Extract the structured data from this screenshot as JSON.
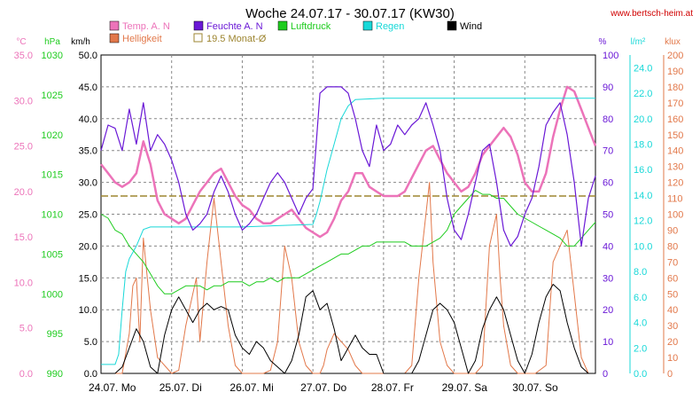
{
  "title": "Woche 24.07.17 - 30.07.17 (KW30)",
  "site": "www.bertsch-heim.at",
  "colors": {
    "temp": "#ec73b9",
    "hell": "#e2784a",
    "feuchte": "#6a18d6",
    "luftdruck": "#1fcc1f",
    "regen": "#18d8d8",
    "wind": "#000000",
    "monat": "#9d8530",
    "site": "#d00000",
    "grid": "#888888"
  },
  "legend": [
    {
      "key": "temp",
      "label": "Temp. A. N",
      "style": "fill"
    },
    {
      "key": "feuchte",
      "label": "Feuchte A. N",
      "style": "fill"
    },
    {
      "key": "luftdruck",
      "label": "Luftdruck",
      "style": "fill"
    },
    {
      "key": "regen",
      "label": "Regen",
      "style": "fill"
    },
    {
      "key": "wind",
      "label": "Wind",
      "style": "fill"
    },
    {
      "key": "hell",
      "label": "Helligkeit",
      "style": "fill"
    },
    {
      "key": "monat",
      "label": "19.5 Monat-Ø",
      "style": "box"
    }
  ],
  "axis_units": {
    "temp": "°C",
    "hpa": "hPa",
    "kmh": "km/h",
    "percent": "%",
    "regen": "l/m²",
    "klux": "klux"
  },
  "chart_data": {
    "type": "line",
    "xlim": [
      0,
      7
    ],
    "x_ticks": [
      "24.07. Mo",
      "25.07. Di",
      "26.07. Mi",
      "27.07. Do",
      "28.07. Fr",
      "29.07. Sa",
      "30.07. So"
    ],
    "axes": {
      "temp": {
        "range": [
          0,
          35
        ],
        "ticks": [
          "0.0",
          "5.0",
          "10.0",
          "15.0",
          "20.0",
          "25.0",
          "30.0",
          "35.0"
        ]
      },
      "hpa": {
        "range": [
          990,
          1030
        ],
        "ticks": [
          "990",
          "995",
          "1000",
          "1005",
          "1010",
          "1015",
          "1020",
          "1025",
          "1030"
        ]
      },
      "kmh": {
        "range": [
          0,
          50
        ],
        "ticks": [
          "0.0",
          "5.0",
          "10.0",
          "15.0",
          "20.0",
          "25.0",
          "30.0",
          "35.0",
          "40.0",
          "45.0",
          "50.0"
        ]
      },
      "percent": {
        "range": [
          0,
          100
        ],
        "ticks": [
          "0",
          "10",
          "20",
          "30",
          "40",
          "50",
          "60",
          "70",
          "80",
          "90",
          "100"
        ]
      },
      "regen": {
        "range": [
          0,
          25
        ],
        "ticks": [
          "0.0",
          "2.0",
          "4.0",
          "6.0",
          "8.0",
          "10.0",
          "12.0",
          "14.0",
          "16.0",
          "18.0",
          "20.0",
          "22.0",
          "24.0"
        ]
      },
      "klux": {
        "range": [
          0,
          200
        ],
        "ticks": [
          "0",
          "10",
          "20",
          "30",
          "40",
          "50",
          "60",
          "70",
          "80",
          "90",
          "100",
          "110",
          "120",
          "130",
          "140",
          "150",
          "160",
          "170",
          "180",
          "190",
          "200"
        ]
      }
    },
    "monat_avg": 19.5,
    "series": [
      {
        "key": "hell",
        "axis": "klux",
        "x": [
          0,
          0.15,
          0.3,
          0.4,
          0.45,
          0.5,
          0.55,
          0.6,
          0.7,
          0.8,
          1.0,
          1.1,
          1.2,
          1.3,
          1.35,
          1.4,
          1.5,
          1.6,
          1.7,
          1.8,
          1.9,
          2.0,
          2.15,
          2.3,
          2.4,
          2.5,
          2.6,
          2.7,
          2.8,
          2.9,
          3.0,
          3.1,
          3.15,
          3.2,
          3.3,
          3.4,
          3.5,
          3.6,
          3.7,
          3.8,
          3.9,
          4.0,
          4.15,
          4.3,
          4.4,
          4.5,
          4.6,
          4.65,
          4.7,
          4.8,
          4.9,
          5.0,
          5.15,
          5.3,
          5.4,
          5.5,
          5.6,
          5.65,
          5.7,
          5.8,
          5.9,
          6.0,
          6.15,
          6.3,
          6.4,
          6.5,
          6.6,
          6.7,
          6.8,
          6.9,
          7.0
        ],
        "y": [
          0,
          0,
          0,
          25,
          55,
          60,
          20,
          85,
          40,
          10,
          0,
          2,
          30,
          50,
          60,
          20,
          70,
          110,
          70,
          30,
          5,
          0,
          0,
          0,
          2,
          20,
          80,
          60,
          20,
          5,
          0,
          0,
          5,
          15,
          25,
          20,
          15,
          5,
          0,
          0,
          0,
          0,
          0,
          0,
          5,
          60,
          100,
          120,
          70,
          20,
          5,
          0,
          0,
          0,
          5,
          80,
          100,
          60,
          30,
          5,
          0,
          0,
          0,
          5,
          70,
          80,
          90,
          50,
          10,
          0,
          0
        ]
      },
      {
        "key": "temp",
        "axis": "temp",
        "x": [
          0,
          0.1,
          0.2,
          0.3,
          0.4,
          0.5,
          0.6,
          0.7,
          0.8,
          0.9,
          1.0,
          1.1,
          1.2,
          1.3,
          1.4,
          1.5,
          1.6,
          1.7,
          1.8,
          1.9,
          2.0,
          2.1,
          2.2,
          2.3,
          2.4,
          2.5,
          2.6,
          2.7,
          2.8,
          2.9,
          3.0,
          3.1,
          3.2,
          3.3,
          3.4,
          3.5,
          3.6,
          3.7,
          3.8,
          3.9,
          4.0,
          4.1,
          4.2,
          4.3,
          4.4,
          4.5,
          4.6,
          4.7,
          4.8,
          4.9,
          5.0,
          5.1,
          5.2,
          5.3,
          5.4,
          5.5,
          5.6,
          5.7,
          5.8,
          5.9,
          6.0,
          6.1,
          6.2,
          6.3,
          6.4,
          6.5,
          6.6,
          6.7,
          6.8,
          6.9,
          7.0
        ],
        "y": [
          23,
          22,
          21,
          20.5,
          21,
          22,
          25.5,
          23,
          19,
          17.5,
          17,
          16.5,
          17,
          18.5,
          20,
          21,
          22,
          22.5,
          21,
          19.5,
          18.5,
          18,
          17,
          16.5,
          16.5,
          17,
          17.5,
          18,
          17,
          16,
          15.5,
          15,
          15.5,
          17,
          19,
          20,
          22,
          22,
          20.5,
          20,
          19.5,
          19.5,
          19.5,
          20,
          21.5,
          23,
          24.5,
          25,
          23.5,
          22,
          21,
          20,
          20.5,
          22,
          24,
          25,
          26,
          27,
          26,
          24,
          21,
          20,
          20,
          22,
          26,
          29,
          31.5,
          31,
          29,
          27,
          25
        ]
      },
      {
        "key": "luftdruck",
        "axis": "hpa",
        "x": [
          0,
          0.1,
          0.2,
          0.3,
          0.4,
          0.5,
          0.6,
          0.7,
          0.8,
          0.9,
          1.0,
          1.1,
          1.2,
          1.3,
          1.4,
          1.5,
          1.6,
          1.7,
          1.8,
          1.9,
          2.0,
          2.1,
          2.2,
          2.3,
          2.4,
          2.5,
          2.6,
          2.7,
          2.8,
          2.9,
          3.0,
          3.1,
          3.2,
          3.3,
          3.4,
          3.5,
          3.6,
          3.7,
          3.8,
          3.9,
          4.0,
          4.1,
          4.2,
          4.3,
          4.4,
          4.5,
          4.6,
          4.7,
          4.8,
          4.9,
          5.0,
          5.1,
          5.2,
          5.3,
          5.4,
          5.5,
          5.6,
          5.7,
          5.8,
          5.9,
          6.0,
          6.1,
          6.2,
          6.3,
          6.4,
          6.5,
          6.6,
          6.7,
          6.8,
          6.9,
          7.0
        ],
        "y": [
          1010,
          1009.5,
          1008,
          1007.5,
          1006,
          1005,
          1004,
          1002.5,
          1001,
          1000,
          1000,
          1000.5,
          1001,
          1001,
          1001,
          1000.5,
          1001,
          1001,
          1001.5,
          1001.5,
          1001.5,
          1001,
          1001.5,
          1001.5,
          1002,
          1001.5,
          1002,
          1002,
          1002,
          1002.5,
          1003,
          1003.5,
          1004,
          1004.5,
          1005,
          1005,
          1005.5,
          1006,
          1006,
          1006.5,
          1006.5,
          1006.5,
          1006.5,
          1006.5,
          1006,
          1006,
          1006,
          1006.5,
          1007,
          1008,
          1010,
          1011,
          1012,
          1013,
          1012.5,
          1012.5,
          1012,
          1012,
          1011,
          1010,
          1009.5,
          1009,
          1008.5,
          1008,
          1007.5,
          1007,
          1006,
          1006,
          1007,
          1008,
          1009
        ]
      },
      {
        "key": "regen",
        "axis": "regen",
        "x": [
          0,
          0.2,
          0.25,
          0.3,
          0.35,
          0.4,
          0.5,
          0.6,
          0.7,
          1.0,
          1.5,
          2.0,
          2.5,
          3.0,
          3.05,
          3.1,
          3.2,
          3.3,
          3.4,
          3.5,
          3.6,
          4.0,
          5.0,
          6.0,
          7.0
        ],
        "y": [
          0.7,
          0.7,
          1.5,
          5,
          8,
          9,
          10,
          11.3,
          11.5,
          11.5,
          11.5,
          11.5,
          11.6,
          11.7,
          12.5,
          13.5,
          16,
          18,
          20,
          21,
          21.5,
          21.6,
          21.6,
          21.6,
          21.6
        ]
      },
      {
        "key": "feuchte",
        "axis": "percent",
        "x": [
          0,
          0.1,
          0.2,
          0.3,
          0.4,
          0.5,
          0.6,
          0.7,
          0.8,
          0.9,
          1.0,
          1.1,
          1.2,
          1.3,
          1.4,
          1.5,
          1.6,
          1.7,
          1.8,
          1.9,
          2.0,
          2.1,
          2.2,
          2.3,
          2.4,
          2.5,
          2.6,
          2.7,
          2.8,
          2.9,
          3.0,
          3.1,
          3.2,
          3.3,
          3.4,
          3.5,
          3.6,
          3.7,
          3.8,
          3.9,
          4.0,
          4.1,
          4.2,
          4.3,
          4.4,
          4.5,
          4.6,
          4.7,
          4.8,
          4.9,
          5.0,
          5.1,
          5.2,
          5.3,
          5.4,
          5.5,
          5.6,
          5.7,
          5.8,
          5.9,
          6.0,
          6.1,
          6.2,
          6.3,
          6.4,
          6.5,
          6.6,
          6.7,
          6.8,
          6.9,
          7.0
        ],
        "y": [
          70,
          78,
          77,
          70,
          83,
          72,
          85,
          70,
          75,
          72,
          67,
          60,
          50,
          45,
          47,
          50,
          57,
          62,
          57,
          50,
          45,
          47,
          50,
          55,
          60,
          63,
          60,
          55,
          50,
          55,
          58,
          88,
          90,
          90,
          90,
          88,
          80,
          70,
          65,
          78,
          70,
          72,
          78,
          75,
          78,
          80,
          85,
          78,
          70,
          55,
          45,
          42,
          50,
          60,
          70,
          72,
          60,
          45,
          40,
          43,
          50,
          55,
          65,
          78,
          82,
          85,
          75,
          60,
          40,
          55,
          62
        ]
      },
      {
        "key": "wind",
        "axis": "kmh",
        "x": [
          0,
          0.2,
          0.3,
          0.4,
          0.5,
          0.6,
          0.7,
          0.8,
          0.9,
          1.0,
          1.1,
          1.2,
          1.3,
          1.4,
          1.5,
          1.6,
          1.7,
          1.8,
          1.9,
          2.0,
          2.1,
          2.2,
          2.3,
          2.4,
          2.5,
          2.6,
          2.7,
          2.8,
          2.9,
          3.0,
          3.1,
          3.2,
          3.3,
          3.4,
          3.5,
          3.6,
          3.7,
          3.8,
          3.9,
          4.0,
          4.2,
          4.4,
          4.5,
          4.6,
          4.7,
          4.8,
          4.9,
          5.0,
          5.2,
          5.3,
          5.4,
          5.5,
          5.6,
          5.7,
          5.8,
          5.9,
          6.0,
          6.1,
          6.2,
          6.3,
          6.4,
          6.5,
          6.6,
          6.7,
          6.8,
          6.9,
          7.0
        ],
        "y": [
          0,
          0,
          1,
          4,
          7,
          5,
          1,
          0,
          6,
          10,
          12,
          10,
          8,
          10,
          11,
          10,
          10.5,
          10,
          6,
          4,
          3,
          5,
          4,
          2,
          1,
          0,
          2,
          6,
          12,
          13,
          10,
          11,
          7,
          2,
          4,
          6,
          4,
          3,
          3,
          0,
          0,
          0,
          2,
          6,
          10,
          11,
          10,
          8,
          0,
          2,
          7,
          10,
          12,
          10,
          6,
          2,
          0,
          3,
          8,
          12,
          14,
          13,
          8,
          4,
          1,
          0,
          0
        ]
      }
    ]
  }
}
